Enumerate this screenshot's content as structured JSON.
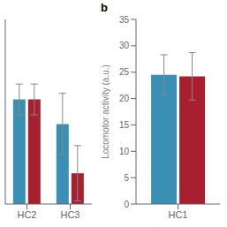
{
  "chart_data": [
    {
      "type": "bar",
      "categories": [
        "HC2",
        "HC3"
      ],
      "series": [
        {
          "color": "#3a8fb5",
          "values": [
            28.2,
            27.8
          ],
          "errors": [
            0.25,
            0.5
          ]
        },
        {
          "color": "#a82030",
          "values": [
            28.2,
            27.0
          ],
          "errors": [
            0.25,
            0.45
          ]
        }
      ],
      "ylim": [
        26.5,
        29.5
      ],
      "yticks": [],
      "tick_labels": "x"
    },
    {
      "type": "bar",
      "annotations": [
        "b"
      ],
      "categories": [
        "HC1"
      ],
      "series": [
        {
          "color": "#3a8fb5",
          "values": [
            24.5
          ],
          "errors": [
            3.8
          ]
        },
        {
          "color": "#a82030",
          "values": [
            24.2
          ],
          "errors": [
            4.5
          ]
        }
      ],
      "ylim": [
        0,
        35
      ],
      "yticks": [
        0,
        5,
        10,
        15,
        20,
        25,
        30,
        35
      ],
      "ylabel": "Locomotor activity (a.u.)"
    }
  ]
}
